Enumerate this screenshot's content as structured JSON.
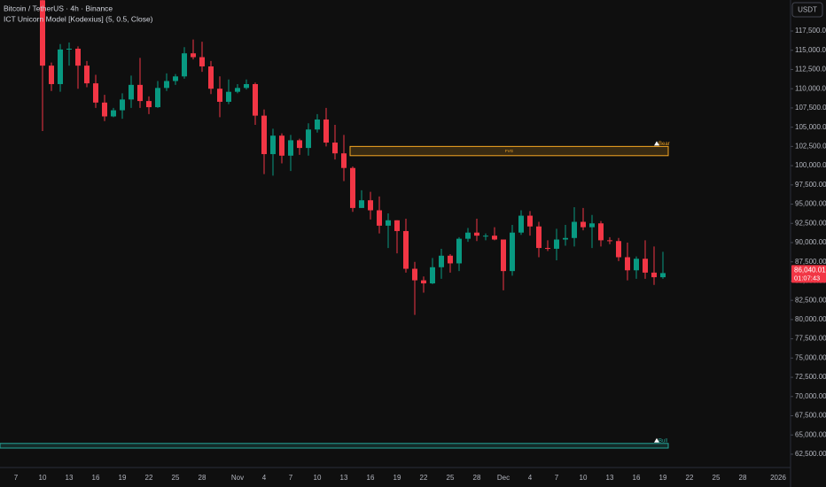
{
  "chart_data": {
    "type": "candlestick",
    "title": "Bitcoin / TetherUS · 4h · Binance",
    "indicator": "ICT Unicorn Model [Kodexius] (5, 0.5, Close)",
    "currency_button": "USDT",
    "up_color": "#089981",
    "down_color": "#f23645",
    "categories": [
      "7",
      null,
      null,
      "10",
      null,
      null,
      "13",
      null,
      null,
      "16",
      null,
      null,
      "19",
      null,
      null,
      "22",
      null,
      null,
      "25",
      null,
      null,
      "28",
      null,
      null,
      null,
      "Nov",
      null,
      null,
      "4",
      null,
      null,
      "7",
      null,
      null,
      "10",
      null,
      null,
      "13",
      null,
      null,
      "16",
      null,
      null,
      "19",
      null,
      null,
      "22",
      null,
      null,
      "25",
      null,
      null,
      "28",
      null,
      null,
      "Dec",
      null,
      null,
      "4",
      null,
      null,
      "7",
      null,
      null,
      "10",
      null,
      null,
      "13",
      null,
      null,
      "16",
      null,
      null,
      "19",
      null,
      null,
      "22",
      null,
      null,
      "25",
      null,
      null,
      "28",
      null,
      null,
      null,
      "2026"
    ],
    "open": [
      null,
      null,
      null,
      121500,
      113000,
      110600,
      115100,
      115200,
      113000,
      110700,
      108200,
      106400,
      107200,
      108600,
      110500,
      108400,
      107600,
      110100,
      111000,
      111600,
      114600,
      114100,
      112900,
      110000,
      108300,
      109600,
      110100,
      110600,
      106500,
      101500,
      103900,
      101300,
      103300,
      102300,
      104700,
      106000,
      103000,
      101600,
      99700,
      94500,
      95500,
      94200,
      92200,
      92900,
      91500,
      86600,
      85100,
      84700,
      86800,
      88300,
      87300,
      90500,
      91300,
      90900,
      90900,
      90400,
      86300,
      91300,
      93500,
      92100,
      89300,
      89200,
      90400,
      90600,
      92700,
      92000,
      92500,
      90300,
      90200,
      88100,
      86400,
      87900,
      86100,
      85500,
      null,
      null,
      null,
      null,
      null,
      null,
      null,
      null,
      null,
      null,
      null,
      null,
      null
    ],
    "high": [
      null,
      null,
      null,
      122500,
      113400,
      115800,
      116000,
      115500,
      113600,
      111800,
      109200,
      107500,
      109400,
      111700,
      114000,
      109000,
      111000,
      112000,
      111900,
      115400,
      116400,
      116100,
      113600,
      111600,
      111200,
      110600,
      111200,
      110800,
      107300,
      104800,
      104200,
      104000,
      103500,
      105500,
      106700,
      107500,
      105300,
      104000,
      99900,
      96800,
      96600,
      96000,
      93800,
      92900,
      93100,
      87500,
      85600,
      88000,
      89200,
      88500,
      90700,
      91900,
      93100,
      91200,
      92000,
      90400,
      92300,
      94200,
      94100,
      92700,
      90300,
      91800,
      92300,
      94600,
      94500,
      93600,
      92800,
      90700,
      90600,
      90000,
      88200,
      90300,
      89500,
      88800,
      null,
      null,
      null,
      null,
      null,
      null,
      null,
      null,
      null,
      null,
      null,
      null,
      null
    ],
    "low": [
      null,
      null,
      null,
      104500,
      109700,
      109600,
      113000,
      110000,
      110200,
      107500,
      105800,
      106300,
      106100,
      107500,
      107500,
      106700,
      107500,
      109700,
      110500,
      111300,
      113800,
      112200,
      109300,
      106300,
      108000,
      109400,
      109900,
      105300,
      98900,
      98700,
      100300,
      99300,
      101400,
      101300,
      104300,
      102500,
      100800,
      98000,
      94000,
      94500,
      93000,
      91200,
      89300,
      88600,
      86100,
      80600,
      83500,
      84600,
      85300,
      86100,
      86300,
      90100,
      90200,
      90300,
      90300,
      83800,
      85700,
      91000,
      90900,
      88100,
      88900,
      87700,
      89600,
      89500,
      91600,
      89300,
      89500,
      89800,
      87600,
      85100,
      85300,
      85300,
      84500,
      85300,
      null,
      null,
      null,
      null,
      null,
      null,
      null,
      null,
      null,
      null,
      null,
      null,
      null
    ],
    "close": [
      null,
      null,
      null,
      113000,
      110600,
      115100,
      115200,
      113000,
      110700,
      108200,
      106400,
      107200,
      108600,
      110500,
      108400,
      107600,
      110100,
      111000,
      111600,
      114600,
      114100,
      112900,
      110000,
      108300,
      109600,
      110100,
      110600,
      106500,
      101500,
      103900,
      101300,
      103300,
      102300,
      104700,
      106000,
      103000,
      101600,
      99700,
      94500,
      95500,
      94200,
      92200,
      92900,
      91500,
      86600,
      85100,
      84700,
      86800,
      88300,
      87300,
      90500,
      91300,
      90900,
      90900,
      90400,
      86300,
      91300,
      93500,
      92100,
      89300,
      89200,
      90400,
      90600,
      92700,
      92000,
      92500,
      90300,
      90200,
      88100,
      86400,
      87900,
      86100,
      85500,
      86040.01,
      null,
      null,
      null,
      null,
      null,
      null,
      null,
      null,
      null,
      null,
      null,
      null,
      null
    ],
    "ylim": [
      61460,
      121530
    ],
    "yticks": [
      {
        "value": 62500,
        "label": "62,500.00"
      },
      {
        "value": 65000,
        "label": "65,000.00"
      },
      {
        "value": 67500,
        "label": "67,500.00"
      },
      {
        "value": 70000,
        "label": "70,000.00"
      },
      {
        "value": 72500,
        "label": "72,500.00"
      },
      {
        "value": 75000,
        "label": "75,000.00"
      },
      {
        "value": 77500,
        "label": "77,500.00"
      },
      {
        "value": 80000,
        "label": "80,000.00"
      },
      {
        "value": 82500,
        "label": "82,500.00"
      },
      {
        "value": 85000,
        "label": "85,000.00"
      },
      {
        "value": 87500,
        "label": "87,500.00"
      },
      {
        "value": 90000,
        "label": "90,000.00"
      },
      {
        "value": 92500,
        "label": "92,500.00"
      },
      {
        "value": 95000,
        "label": "95,000.00"
      },
      {
        "value": 97500,
        "label": "97,500.00"
      },
      {
        "value": 100000,
        "label": "100,000.00"
      },
      {
        "value": 102500,
        "label": "102,500.00"
      },
      {
        "value": 105000,
        "label": "105,000.00"
      },
      {
        "value": 107500,
        "label": "107,500.00"
      },
      {
        "value": 110000,
        "label": "110,000.00"
      },
      {
        "value": 112500,
        "label": "112,500.00"
      },
      {
        "value": 115000,
        "label": "115,000.00"
      },
      {
        "value": 117500,
        "label": "117,500.00"
      }
    ],
    "grid": false,
    "last_price": {
      "value": 86040.01,
      "label": "86,040.01",
      "countdown": "01:07:43",
      "color": "#f23645"
    },
    "zones": [
      {
        "name": "Bear",
        "top": 102500,
        "bottom": 101300,
        "color": "#f5a623",
        "text": "FVG"
      },
      {
        "name": "Bull",
        "top": 63900,
        "bottom": 63300,
        "color": "#26a69a"
      }
    ]
  }
}
